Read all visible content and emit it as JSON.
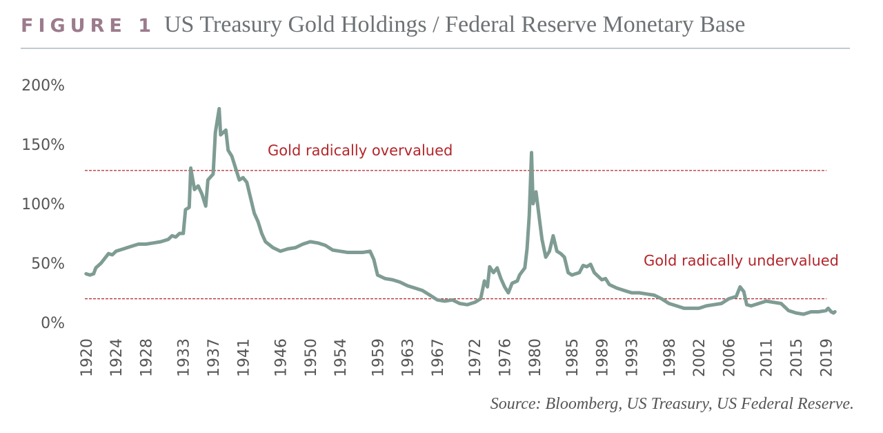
{
  "chart_data": {
    "type": "line",
    "figure_label": "FIGURE 1",
    "title": "US Treasury Gold Holdings / Federal Reserve Monetary Base",
    "source": "Source: Bloomberg, US Treasury, US Federal Reserve.",
    "color": "#7f9c94",
    "x": [
      1920,
      1920.5,
      1921,
      1921.3,
      1922,
      1923,
      1923.5,
      1924,
      1925,
      1926,
      1927,
      1928,
      1929,
      1930,
      1931,
      1931.5,
      1932,
      1932.5,
      1933,
      1933.3,
      1933.8,
      1934,
      1934.5,
      1935,
      1935.5,
      1936,
      1936.3,
      1937,
      1937.3,
      1937.8,
      1938,
      1938.7,
      1939,
      1939.5,
      1940,
      1940.5,
      1941,
      1941.5,
      1942,
      1942.5,
      1943,
      1943.5,
      1944,
      1945,
      1946,
      1947,
      1948,
      1949,
      1950,
      1951,
      1952,
      1953,
      1954,
      1955,
      1956,
      1957,
      1958,
      1958.5,
      1959,
      1960,
      1961,
      1962,
      1963,
      1964,
      1965,
      1966,
      1967,
      1968,
      1969,
      1970,
      1971,
      1972,
      1972.8,
      1973.3,
      1973.7,
      1974,
      1974.5,
      1975,
      1975.5,
      1976,
      1976.5,
      1977,
      1977.7,
      1978,
      1978.7,
      1979,
      1979.3,
      1979.6,
      1979.8,
      1980.2,
      1980.7,
      1981,
      1981.5,
      1982,
      1982.5,
      1983,
      1983.5,
      1984,
      1984.5,
      1985,
      1986,
      1986.5,
      1987,
      1987.5,
      1988,
      1989,
      1989.5,
      1990,
      1991,
      1992,
      1993,
      1994,
      1995,
      1996,
      1997,
      1998,
      1999,
      2000,
      2001,
      2002,
      2003,
      2004,
      2005,
      2006,
      2007,
      2007.5,
      2008,
      2008.4,
      2009,
      2010,
      2011,
      2012,
      2013,
      2014,
      2015,
      2016,
      2017,
      2018,
      2019,
      2019.3,
      2019.7,
      2020,
      2020.2
    ],
    "values": [
      41,
      40,
      41,
      46,
      50,
      58,
      57,
      60,
      62,
      64,
      66,
      66,
      67,
      68,
      70,
      73,
      72,
      75,
      75,
      95,
      97,
      130,
      112,
      115,
      108,
      98,
      120,
      125,
      160,
      180,
      158,
      162,
      145,
      140,
      130,
      120,
      122,
      118,
      105,
      92,
      85,
      75,
      68,
      63,
      60,
      62,
      63,
      66,
      68,
      67,
      65,
      61,
      60,
      59,
      59,
      59,
      60,
      53,
      40,
      37,
      36,
      34,
      31,
      29,
      27,
      23,
      19,
      18,
      19,
      16,
      15,
      17,
      20,
      35,
      30,
      47,
      42,
      46,
      37,
      30,
      25,
      33,
      35,
      40,
      46,
      62,
      90,
      143,
      100,
      110,
      85,
      70,
      55,
      60,
      73,
      60,
      58,
      55,
      42,
      40,
      42,
      48,
      47,
      49,
      42,
      36,
      37,
      32,
      29,
      27,
      25,
      25,
      24,
      23,
      20,
      16,
      14,
      12,
      12,
      12,
      14,
      15,
      16,
      20,
      22,
      30,
      26,
      15,
      14,
      16,
      18,
      17,
      16,
      10,
      8,
      7,
      9,
      9,
      10,
      12,
      9,
      8,
      9
    ],
    "xlim": [
      1919,
      2021
    ],
    "xticks": [
      1920,
      1924,
      1928,
      1933,
      1937,
      1941,
      1946,
      1950,
      1954,
      1959,
      1963,
      1967,
      1972,
      1976,
      1980,
      1985,
      1989,
      1993,
      1998,
      2002,
      2006,
      2011,
      2015,
      2019
    ],
    "ylim": [
      0,
      200
    ],
    "yticks": [
      {
        "value": 0,
        "label": "0%"
      },
      {
        "value": 50,
        "label": "50%"
      },
      {
        "value": 100,
        "label": "100%"
      },
      {
        "value": 150,
        "label": "150%"
      },
      {
        "value": 200,
        "label": "200%"
      }
    ],
    "reference_lines": [
      {
        "value": 128,
        "label": "Gold radically overvalued",
        "color": "#b3262b"
      },
      {
        "value": 20,
        "label": "Gold radically undervalued",
        "color": "#b3262b"
      }
    ],
    "grid": false
  }
}
